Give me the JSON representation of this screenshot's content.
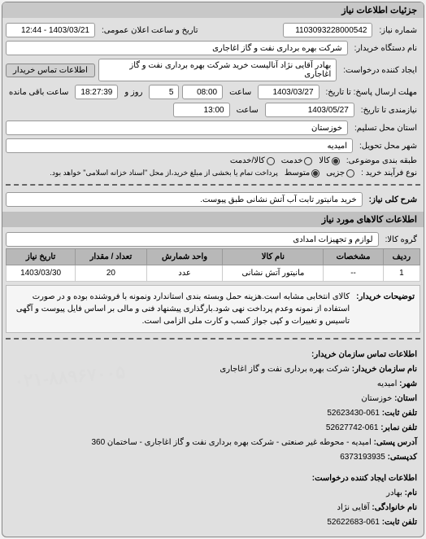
{
  "panel_title": "جزئیات اطلاعات نیاز",
  "fields": {
    "req_number_label": "شماره نیاز:",
    "req_number": "1103093228000542",
    "announce_label": "تاریخ و ساعت اعلان عمومی:",
    "announce": "1403/03/21 - 12:44",
    "buyer_org_label": "نام دستگاه خریدار:",
    "buyer_org": "شرکت بهره برداری نفت و گاز اغاجاری",
    "requester_label": "ایجاد کننده درخواست:",
    "requester": "بهادر  آقایی نژاد آنالیست خرید شرکت بهره برداری نفت و گاز اغاجاری",
    "contact_btn": "اطلاعات تماس خریدار",
    "deadline_label": "مهلت ارسال پاسخ: تا تاریخ:",
    "deadline_date": "1403/03/27",
    "deadline_time_label": "ساعت",
    "deadline_time": "08:00",
    "remaining_days": "5",
    "remaining_days_label": "روز و",
    "remaining_time": "18:27:39",
    "remaining_time_label": "ساعت باقی مانده",
    "need_until_label": "نیازمندی تا تاریخ:",
    "need_until_date": "1403/05/27",
    "need_until_time": "13:00",
    "province_label": "استان محل تسلیم:",
    "province": "خوزستان",
    "city_label": "شهر محل تحویل:",
    "city": "امیدیه",
    "pack_label": "طبقه بندی موضوعی:",
    "pack_kala": "کالا",
    "pack_khedmat": "خدمت",
    "pack_kalakhedmat": "کالا/خدمت",
    "size_label": "نوع فرآیند خرید :",
    "size_small": "جزیی",
    "size_med": "متوسط",
    "payment_note": "پرداخت تمام یا بخشی از مبلغ خرید،از محل \"اسناد خزانه اسلامی\" خواهد بود.",
    "general_label": "شرح کلی نیاز:",
    "general": "خرید مانیتور تابت آب آتش نشانی طبق پیوست."
  },
  "goods_header": "اطلاعات کالاهای مورد نیاز",
  "group_label": "گروه کالا:",
  "group_value": "لوازم و تجهیزات امدادی",
  "table": {
    "cols": [
      "ردیف",
      "مشخصات",
      "نام کالا",
      "واحد شمارش",
      "تعداد / مقدار",
      "تاریخ نیاز"
    ],
    "rows": [
      [
        "1",
        "--",
        "مانیتور آتش نشانی",
        "عدد",
        "20",
        "1403/03/30"
      ]
    ]
  },
  "buyer_note_label": "توضیحات خریدار:",
  "buyer_note": "کالای انتخابی مشابه است.هزینه حمل وبسته بندی استاندارد ونمونه با فروشنده بوده و در صورت استفاده از نمونه وعدم پرداخت نهی شود.بارگذاری پیشنهاد فنی و مالی بر اساس فایل پیوست و آگهی تاسیس و تغییرات و کپی جواز کسب و کارت ملی الزامی است.",
  "contact_header": "اطلاعات تماس سازمان خریدار:",
  "contact": {
    "org_label": "نام سازمان خریدار:",
    "org": "شرکت بهره برداری نفت و گاز اغاجاری",
    "city_label": "شهر:",
    "city": "امیدیه",
    "province_label": "استان:",
    "province": "خوزستان",
    "phone_label": "تلفن ثابت:",
    "phone": "061-52623430",
    "fax_label": "تلفن نمابر:",
    "fax": "061-52627742",
    "address_label": "آدرس پستی:",
    "address": "امیدیه - محوطه غیر صنعتی - شرکت بهره برداری نفت و گاز اغاجاری - ساختمان 360",
    "postal_label": "کدپستی:",
    "postal": "6373193935"
  },
  "creator_header": "اطلاعات ایجاد کننده درخواست:",
  "creator": {
    "name_label": "نام:",
    "name": "بهادر",
    "family_label": "نام خانوادگی:",
    "family": "آقایی نژاد",
    "phone_label": "تلفن ثابت:",
    "phone": "061-52622683"
  },
  "watermark": "۰۲۱-۸۸۹۶۷۰۰۵"
}
